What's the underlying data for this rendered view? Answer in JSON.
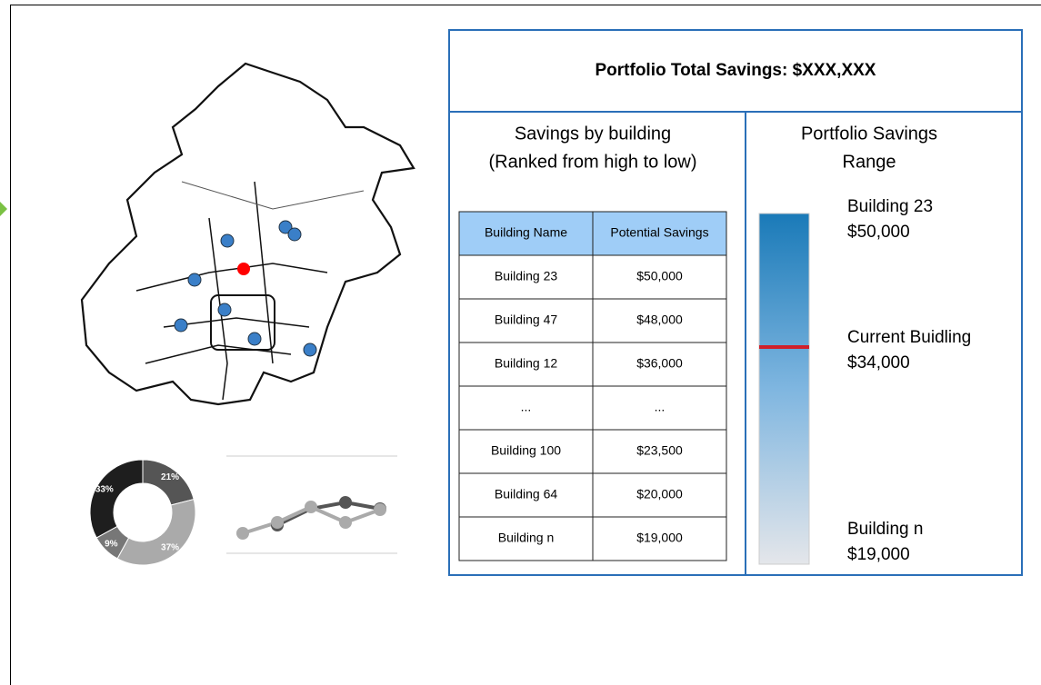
{
  "header": {
    "title": "Portfolio Total Savings: $XXX,XXX"
  },
  "ranking": {
    "title_lines": [
      "Savings by building",
      "(Ranked from high to low)"
    ],
    "table": {
      "columns": [
        "Building Name",
        "Potential Savings"
      ],
      "rows": [
        [
          "Building 23",
          "$50,000"
        ],
        [
          "Building 47",
          "$48,000"
        ],
        [
          "Building 12",
          "$36,000"
        ],
        [
          "...",
          "..."
        ],
        [
          "Building 100",
          "$23,500"
        ],
        [
          "Building 64",
          "$20,000"
        ],
        [
          "Building n",
          "$19,000"
        ]
      ]
    }
  },
  "range": {
    "title_lines": [
      "Portfolio Savings",
      "Range"
    ],
    "markers": [
      {
        "label": "Building 23",
        "value": "$50,000"
      },
      {
        "label": "Current Buidling",
        "value": "$34,000"
      },
      {
        "label": "Building n",
        "value": "$19,000"
      }
    ]
  },
  "chart_data": {
    "type": "donut",
    "values": [
      21,
      37,
      9,
      33
    ],
    "value_labels": [
      "21%",
      "37%",
      "9%",
      "33%"
    ],
    "colors": [
      "#555555",
      "#aaaaaa",
      "#777777",
      "#1e1e1e"
    ]
  }
}
